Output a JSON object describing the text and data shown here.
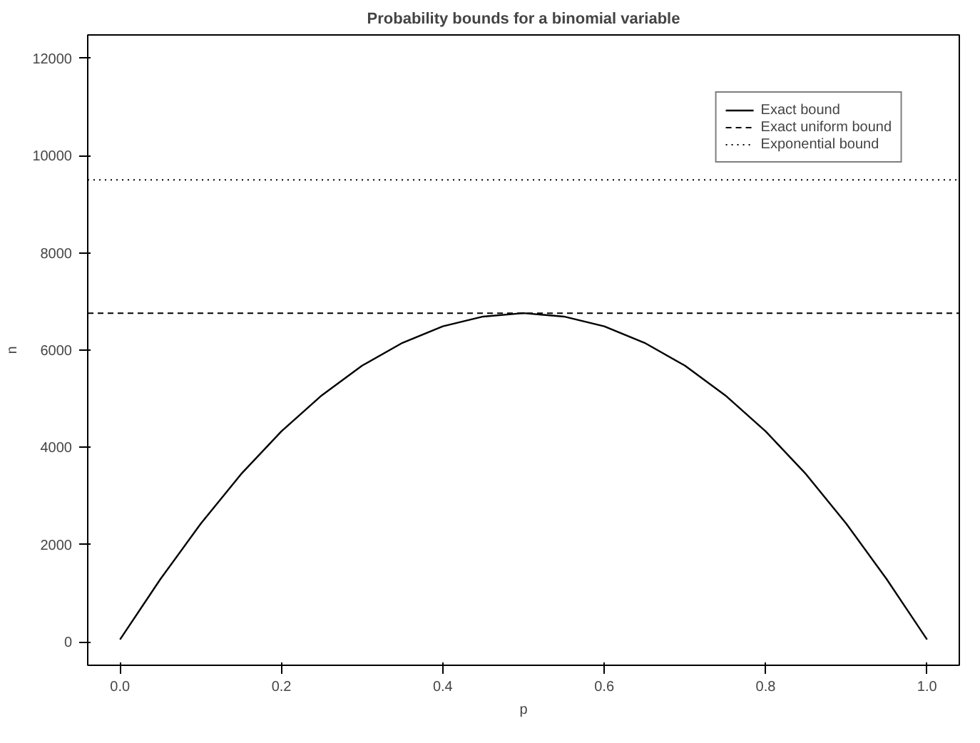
{
  "chart_data": {
    "type": "line",
    "title": "Probability bounds for a binomial variable",
    "xlabel": "p",
    "ylabel": "n",
    "x": [
      0,
      0.05,
      0.1,
      0.15,
      0.2,
      0.25,
      0.3,
      0.35,
      0.4,
      0.45,
      0.5,
      0.55,
      0.6,
      0.65,
      0.7,
      0.75,
      0.8,
      0.85,
      0.9,
      0.95,
      1
    ],
    "series": [
      {
        "name": "Exact bound",
        "color": "#000000",
        "line_style": "solid",
        "values": [
          50,
          1290,
          2430,
          3450,
          4330,
          5070,
          5680,
          6150,
          6490,
          6690,
          6760,
          6690,
          6490,
          6150,
          5680,
          5070,
          4330,
          3450,
          2430,
          1290,
          50
        ]
      }
    ],
    "ref_lines": [
      {
        "axis": "y",
        "value": 6760,
        "label": "Exact uniform bound",
        "color": "#000000",
        "line_style": "dashed"
      },
      {
        "axis": "y",
        "value": 9500,
        "label": "Exponential bound",
        "color": "#000000",
        "line_style": "dotted"
      }
    ],
    "xlim": [
      -0.04,
      1.04
    ],
    "ylim": [
      -480,
      12480
    ],
    "xticks": [
      {
        "value": 0,
        "label": "0.0"
      },
      {
        "value": 0.2,
        "label": "0.2"
      },
      {
        "value": 0.4,
        "label": "0.4"
      },
      {
        "value": 0.6,
        "label": "0.6"
      },
      {
        "value": 0.8,
        "label": "0.8"
      },
      {
        "value": 1,
        "label": "1.0"
      }
    ],
    "yticks": [
      0,
      2000,
      4000,
      6000,
      8000,
      10000,
      12000
    ],
    "grid": false,
    "legend": "top right"
  }
}
